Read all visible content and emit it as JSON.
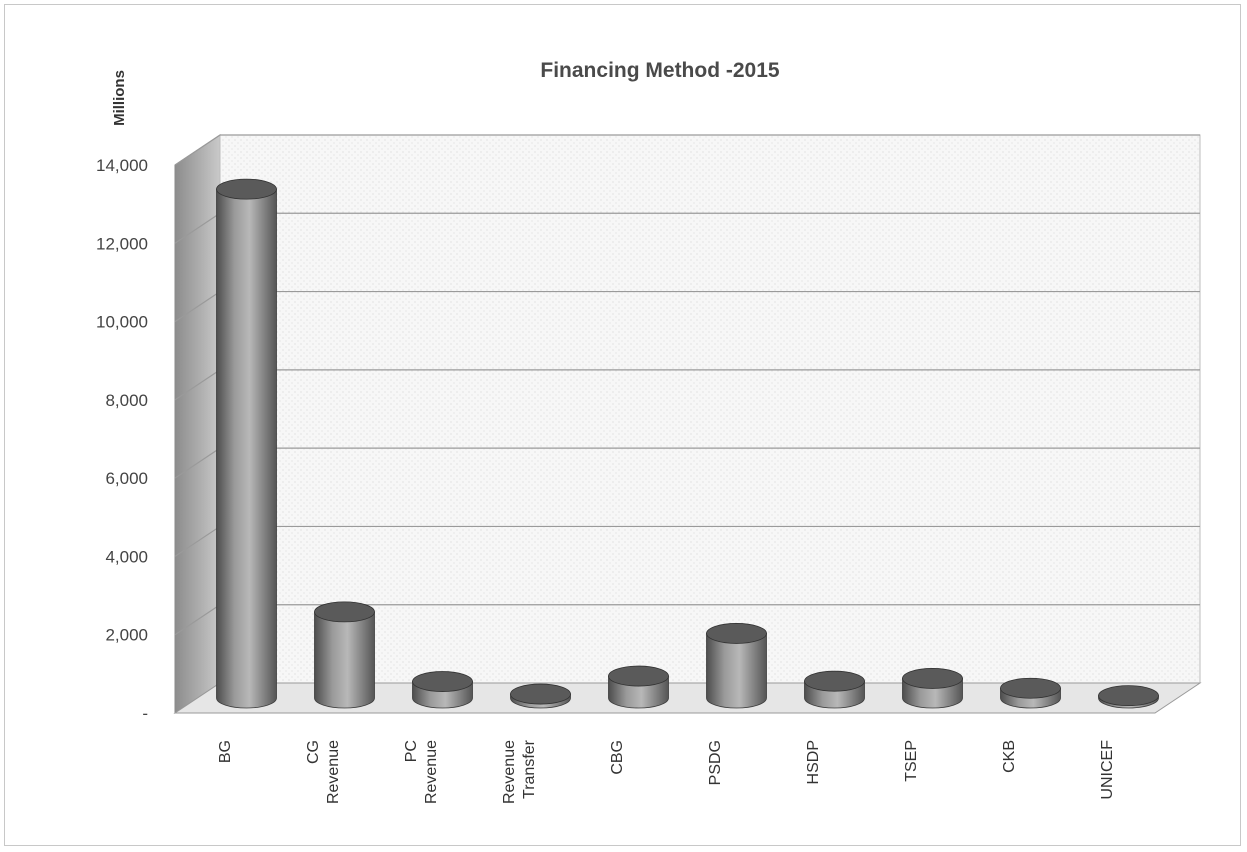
{
  "chart_data": {
    "type": "bar",
    "title": "Financing Method -2015",
    "ylabel": "Millions",
    "xlabel": "",
    "ylim": [
      0,
      14000
    ],
    "yticks": [
      {
        "value": 0,
        "label": "-"
      },
      {
        "value": 2000,
        "label": "2,000"
      },
      {
        "value": 4000,
        "label": "4,000"
      },
      {
        "value": 6000,
        "label": "6,000"
      },
      {
        "value": 8000,
        "label": "8,000"
      },
      {
        "value": 10000,
        "label": "10,000"
      },
      {
        "value": 12000,
        "label": "12,000"
      },
      {
        "value": 14000,
        "label": "14,000"
      }
    ],
    "categories": [
      [
        "BG"
      ],
      [
        "CG",
        "Revenue"
      ],
      [
        "PC",
        "Revenue"
      ],
      [
        "Revenue",
        "Transfer"
      ],
      [
        "CBG"
      ],
      [
        "PSDG"
      ],
      [
        "HSDP"
      ],
      [
        "TSEP"
      ],
      [
        "CKB"
      ],
      [
        "UNICEF"
      ]
    ],
    "values": [
      13000,
      2200,
      420,
      100,
      560,
      1650,
      430,
      500,
      250,
      60
    ],
    "bar_shape": "cylinder",
    "projection": "3d",
    "grid": true,
    "legend": "none",
    "colors": {
      "bar_body": "#7a7a7a",
      "bar_top": "#5a5a5a",
      "wall": "#f0f0f0",
      "gridline": "#9a9a9a"
    }
  }
}
